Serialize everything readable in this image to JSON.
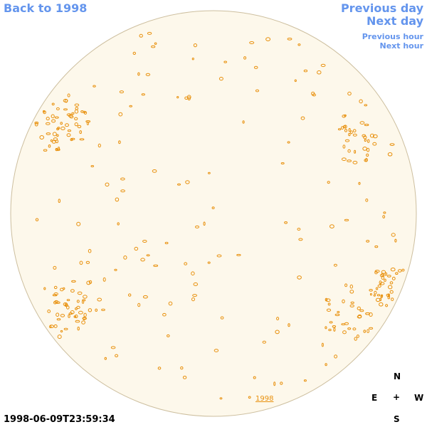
{
  "nav": {
    "back": "Back to 1998",
    "previous_day": "Previous day",
    "next_day": "Next day",
    "previous_hour": "Previous hour",
    "next_hour": "Next hour"
  },
  "disk": {
    "year_link": "1998"
  },
  "timestamp": "1998-06-09T23:59:34",
  "compass": {
    "north": "N",
    "east": "E",
    "center": "+",
    "west": "W",
    "south": "S"
  }
}
